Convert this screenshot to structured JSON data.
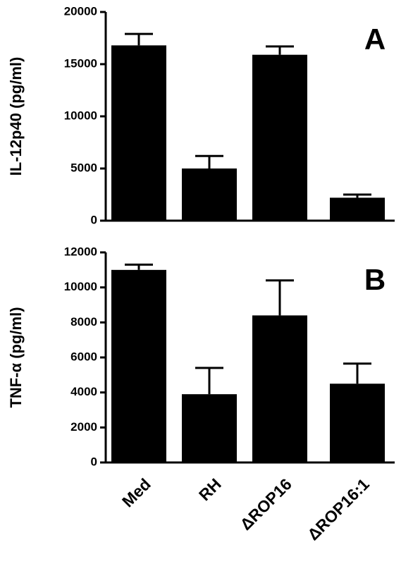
{
  "chart_data": [
    {
      "type": "bar",
      "y_label": "IL-12p40 (pg/ml)",
      "panel_label": "A",
      "color": "#000000",
      "values": [
        16800,
        5000,
        15900,
        2200
      ],
      "errors": [
        1100,
        1200,
        800,
        300
      ],
      "ylim": [
        0,
        20000
      ],
      "yticks": [
        0,
        5000,
        10000,
        15000,
        20000
      ]
    },
    {
      "type": "bar",
      "y_label": "TNF-α (pg/ml)",
      "panel_label": "B",
      "color": "#000000",
      "categories": [
        "Med",
        "RH",
        "ΔROP16",
        "ΔROP16:1"
      ],
      "values": [
        11000,
        3900,
        8400,
        4500
      ],
      "errors": [
        300,
        1500,
        2000,
        1150
      ],
      "ylim": [
        0,
        12000
      ],
      "yticks": [
        0,
        2000,
        4000,
        6000,
        8000,
        10000,
        12000
      ]
    }
  ]
}
